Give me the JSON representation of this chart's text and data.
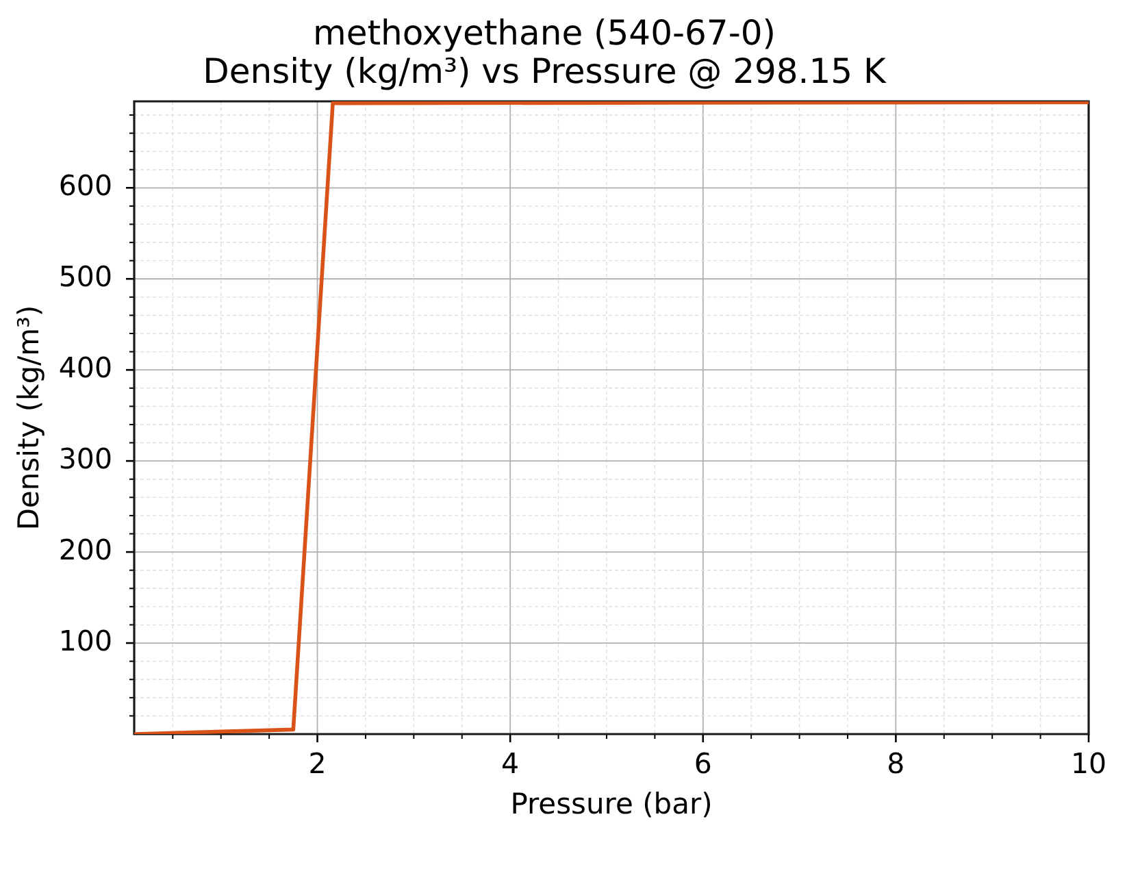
{
  "chart_data": {
    "type": "line",
    "title": "methoxyethane (540-67-0)\nDensity (kg/m³) vs Pressure @ 298.15 K",
    "xlabel": "Pressure (bar)",
    "ylabel": "Density (kg/m³)",
    "x": [
      0.1,
      1.75,
      2.16,
      10
    ],
    "series": [
      {
        "color": "#d95319",
        "values": [
          0,
          5,
          693,
          694
        ]
      }
    ],
    "xlim": [
      0.1,
      10
    ],
    "ylim": [
      0,
      695
    ],
    "xticks": [
      {
        "value": 0.5,
        "label": null
      },
      {
        "value": 1,
        "label": null
      },
      {
        "value": 1.5,
        "label": null
      },
      2,
      {
        "value": 2.5,
        "label": null
      },
      {
        "value": 3,
        "label": null
      },
      {
        "value": 3.5,
        "label": null
      },
      4,
      {
        "value": 4.5,
        "label": null
      },
      {
        "value": 5,
        "label": null
      },
      {
        "value": 5.5,
        "label": null
      },
      6,
      {
        "value": 6.5,
        "label": null
      },
      {
        "value": 7,
        "label": null
      },
      {
        "value": 7.5,
        "label": null
      },
      8,
      {
        "value": 8.5,
        "label": null
      },
      {
        "value": 9,
        "label": null
      },
      {
        "value": 9.5,
        "label": null
      },
      10
    ],
    "yticks": [
      {
        "value": 20,
        "label": null
      },
      {
        "value": 40,
        "label": null
      },
      {
        "value": 60,
        "label": null
      },
      {
        "value": 80,
        "label": null
      },
      100,
      {
        "value": 120,
        "label": null
      },
      {
        "value": 140,
        "label": null
      },
      {
        "value": 160,
        "label": null
      },
      {
        "value": 180,
        "label": null
      },
      200,
      {
        "value": 220,
        "label": null
      },
      {
        "value": 240,
        "label": null
      },
      {
        "value": 260,
        "label": null
      },
      {
        "value": 280,
        "label": null
      },
      300,
      {
        "value": 320,
        "label": null
      },
      {
        "value": 340,
        "label": null
      },
      {
        "value": 360,
        "label": null
      },
      {
        "value": 380,
        "label": null
      },
      400,
      {
        "value": 420,
        "label": null
      },
      {
        "value": 440,
        "label": null
      },
      {
        "value": 460,
        "label": null
      },
      {
        "value": 480,
        "label": null
      },
      500,
      {
        "value": 520,
        "label": null
      },
      {
        "value": 540,
        "label": null
      },
      {
        "value": 560,
        "label": null
      },
      {
        "value": 580,
        "label": null
      },
      600,
      {
        "value": 620,
        "label": null
      },
      {
        "value": 640,
        "label": null
      },
      {
        "value": 660,
        "label": null
      },
      {
        "value": 680,
        "label": null
      }
    ],
    "grid": true,
    "marker": "none"
  }
}
